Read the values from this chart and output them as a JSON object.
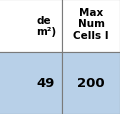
{
  "col1_header_text": "de\nm²)",
  "col2_header_text": "Max\nNum\nCells I",
  "col1_data_text": "49",
  "col2_data_text": "200",
  "header_bg": "#ffffff",
  "data_bg": "#b8d0e8",
  "grid_color": "#7a7a7a",
  "text_color": "#000000",
  "header_fontsize": 7.5,
  "data_fontsize": 9.5,
  "col_split": 0.52,
  "row_split": 0.54,
  "fig_width": 1.2,
  "fig_height": 1.15,
  "fig_dpi": 100
}
